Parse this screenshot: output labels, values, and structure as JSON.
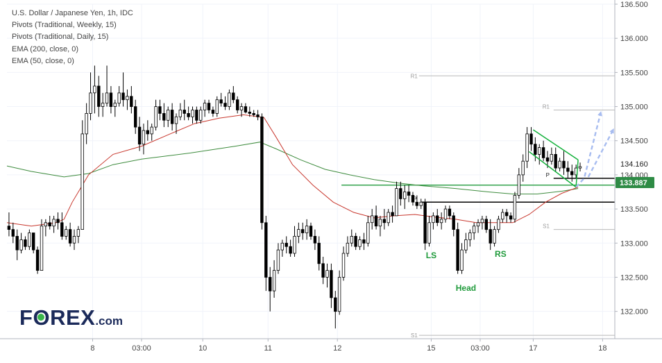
{
  "legend": {
    "line1": "U.S. Dollar / Japanese Yen, 1h, IDC",
    "line2": "Pivots (Traditional, Weekly, 15)",
    "line3": "Pivots (Traditional, Daily, 15)",
    "line4": "EMA (200, close, 0)",
    "line5": "EMA (50, close, 0)"
  },
  "logo": {
    "part1": "F",
    "part2": "REX",
    "part3": ".com"
  },
  "colors": {
    "up": "#ffffff",
    "down": "#000000",
    "wick": "#000000",
    "ema50": "#c8372d",
    "ema200": "#3d8b3d",
    "price_label": "#2e8b45",
    "pattern": "#1e9a3a",
    "flag": "#13b13b",
    "arrow": "#a7bcf0",
    "pivot_weekly": "#b8b8b8",
    "pivot_daily": "#000000"
  },
  "chart_data": {
    "type": "candlestick",
    "symbol": "USD/JPY",
    "timeframe": "1h",
    "yaxis": {
      "range": [
        131.6,
        136.5
      ],
      "ticks": [
        132.0,
        132.5,
        133.0,
        133.5,
        134.0,
        134.5,
        135.0,
        135.5,
        136.0,
        136.5
      ],
      "tick_labels": [
        "132.000",
        "132.500",
        "133.000",
        "133.500",
        "134.000",
        "134.500",
        "135.000",
        "135.500",
        "136.000",
        "136.500"
      ]
    },
    "xaxis": {
      "range": [
        0,
        149
      ],
      "ticks": [
        21,
        33,
        48,
        64,
        81,
        104,
        116,
        129,
        146
      ],
      "tick_labels": [
        "8",
        "03:00",
        "10",
        "11",
        "12",
        "15",
        "03:00",
        "17",
        "18"
      ]
    },
    "current_price": {
      "value": 133.887,
      "label": "133.887"
    },
    "price_tag": {
      "value": 134.16,
      "label": "134.160"
    },
    "weekly_pivots": [
      {
        "label": "R1",
        "value": 135.45,
        "x_start": 101,
        "x_end": 149
      },
      {
        "label": "S1",
        "value": 131.65,
        "x_start": 101,
        "x_end": 149
      }
    ],
    "daily_pivots": [
      {
        "label": "P",
        "value": 133.6,
        "x_start": 101.5,
        "x_end": 149,
        "label_x": 100.5
      },
      {
        "label": "R1",
        "value": 134.95,
        "x_start": 134,
        "x_end": 149,
        "label_x": 133
      },
      {
        "label": "P",
        "value": 133.95,
        "x_start": 134,
        "x_end": 149,
        "label_x": 133
      },
      {
        "label": "S1",
        "value": 133.2,
        "x_start": 134,
        "x_end": 149,
        "label_x": 133
      }
    ],
    "neckline": {
      "value": 133.85,
      "x_start": 82,
      "x_end": 149
    },
    "annotations": [
      {
        "text": "LS",
        "x": 104,
        "value": 132.78
      },
      {
        "text": "Head",
        "x": 112.5,
        "value": 132.3
      },
      {
        "text": "RS",
        "x": 121,
        "value": 132.8
      }
    ],
    "flag_channel": {
      "upper": [
        [
          129,
          134.66
        ],
        [
          140,
          134.22
        ]
      ],
      "lower": [
        [
          128,
          134.34
        ],
        [
          139.5,
          133.82
        ]
      ],
      "apex": [
        139.5,
        133.82
      ]
    },
    "projection_arrows": [
      [
        [
          139.5,
          133.82
        ],
        [
          141.5,
          133.95
        ],
        [
          145.5,
          134.9
        ]
      ],
      [
        [
          142.5,
          133.97
        ],
        [
          148.5,
          134.65
        ]
      ]
    ],
    "ema_50": [
      [
        0,
        133.3
      ],
      [
        6,
        133.25
      ],
      [
        12,
        133.3
      ],
      [
        14,
        133.35
      ],
      [
        16,
        133.6
      ],
      [
        20,
        134.0
      ],
      [
        26,
        134.3
      ],
      [
        33,
        134.42
      ],
      [
        40,
        134.6
      ],
      [
        46,
        134.75
      ],
      [
        52,
        134.83
      ],
      [
        58,
        134.88
      ],
      [
        63,
        134.84
      ],
      [
        66,
        134.55
      ],
      [
        70,
        134.15
      ],
      [
        75,
        133.85
      ],
      [
        80,
        133.6
      ],
      [
        85,
        133.45
      ],
      [
        90,
        133.37
      ],
      [
        95,
        133.4
      ],
      [
        100,
        133.42
      ],
      [
        105,
        133.38
      ],
      [
        110,
        133.35
      ],
      [
        115,
        133.3
      ],
      [
        120,
        133.3
      ],
      [
        124,
        133.3
      ],
      [
        128,
        133.42
      ],
      [
        132,
        133.6
      ],
      [
        136,
        133.73
      ],
      [
        140,
        133.82
      ]
    ],
    "ema_200": [
      [
        0,
        134.13
      ],
      [
        6,
        134.05
      ],
      [
        14,
        133.97
      ],
      [
        20,
        134.02
      ],
      [
        26,
        134.15
      ],
      [
        33,
        134.23
      ],
      [
        45,
        134.32
      ],
      [
        56,
        134.42
      ],
      [
        62,
        134.48
      ],
      [
        66,
        134.38
      ],
      [
        72,
        134.22
      ],
      [
        78,
        134.08
      ],
      [
        84,
        134.0
      ],
      [
        90,
        133.93
      ],
      [
        96,
        133.88
      ],
      [
        102,
        133.84
      ],
      [
        110,
        133.8
      ],
      [
        118,
        133.75
      ],
      [
        124,
        133.72
      ],
      [
        130,
        133.72
      ],
      [
        136,
        133.76
      ],
      [
        140,
        133.8
      ]
    ],
    "candles": [
      [
        133.25,
        133.45,
        133.1,
        133.2
      ],
      [
        133.2,
        133.3,
        133.0,
        133.1
      ],
      [
        133.1,
        133.2,
        132.75,
        132.9
      ],
      [
        132.9,
        133.15,
        132.85,
        133.05
      ],
      [
        133.05,
        133.1,
        132.9,
        132.95
      ],
      [
        132.95,
        133.2,
        132.9,
        133.15
      ],
      [
        133.15,
        133.15,
        132.85,
        132.9
      ],
      [
        132.9,
        132.95,
        132.55,
        132.6
      ],
      [
        132.6,
        133.35,
        132.6,
        133.25
      ],
      [
        133.25,
        133.35,
        133.1,
        133.3
      ],
      [
        133.3,
        133.4,
        133.2,
        133.25
      ],
      [
        133.25,
        133.4,
        133.15,
        133.35
      ],
      [
        133.35,
        133.45,
        133.2,
        133.3
      ],
      [
        133.3,
        133.45,
        133.05,
        133.1
      ],
      [
        133.1,
        133.25,
        133.05,
        133.2
      ],
      [
        133.2,
        133.3,
        132.95,
        133.0
      ],
      [
        133.0,
        133.2,
        132.9,
        133.1
      ],
      [
        133.1,
        133.25,
        133.0,
        133.2
      ],
      [
        133.2,
        134.8,
        133.2,
        134.6
      ],
      [
        134.6,
        135.05,
        134.45,
        134.9
      ],
      [
        134.9,
        135.5,
        134.8,
        135.2
      ],
      [
        135.2,
        135.6,
        134.9,
        135.3
      ],
      [
        135.3,
        135.45,
        134.85,
        135.0
      ],
      [
        135.0,
        135.2,
        134.85,
        135.05
      ],
      [
        135.05,
        135.6,
        135.0,
        135.2
      ],
      [
        135.2,
        135.3,
        134.9,
        135.0
      ],
      [
        135.0,
        135.1,
        134.85,
        135.05
      ],
      [
        135.05,
        135.3,
        135.0,
        135.2
      ],
      [
        135.2,
        135.5,
        135.0,
        135.1
      ],
      [
        135.1,
        135.25,
        134.95,
        135.15
      ],
      [
        135.15,
        135.3,
        134.9,
        135.0
      ],
      [
        135.0,
        135.1,
        134.6,
        134.7
      ],
      [
        134.7,
        134.85,
        134.35,
        134.45
      ],
      [
        134.45,
        134.75,
        134.3,
        134.65
      ],
      [
        134.65,
        134.8,
        134.5,
        134.6
      ],
      [
        134.6,
        134.75,
        134.5,
        134.7
      ],
      [
        134.7,
        135.1,
        134.65,
        135.0
      ],
      [
        135.0,
        135.1,
        134.8,
        134.9
      ],
      [
        134.9,
        135.05,
        134.7,
        134.8
      ],
      [
        134.8,
        135.0,
        134.7,
        134.95
      ],
      [
        134.95,
        135.05,
        134.65,
        134.75
      ],
      [
        134.75,
        134.9,
        134.6,
        134.85
      ],
      [
        134.85,
        135.05,
        134.8,
        134.95
      ],
      [
        134.95,
        135.1,
        134.8,
        134.9
      ],
      [
        134.9,
        135.0,
        134.8,
        134.85
      ],
      [
        134.85,
        135.0,
        134.75,
        134.95
      ],
      [
        134.95,
        135.0,
        134.75,
        134.8
      ],
      [
        134.8,
        135.0,
        134.75,
        134.95
      ],
      [
        134.95,
        135.1,
        134.85,
        135.05
      ],
      [
        135.05,
        135.1,
        134.9,
        134.95
      ],
      [
        134.95,
        135.0,
        134.85,
        134.9
      ],
      [
        134.9,
        135.15,
        134.85,
        135.1
      ],
      [
        135.1,
        135.2,
        135.0,
        135.05
      ],
      [
        135.05,
        135.15,
        134.95,
        135.0
      ],
      [
        135.0,
        135.25,
        134.95,
        135.2
      ],
      [
        135.2,
        135.3,
        135.05,
        135.1
      ],
      [
        135.1,
        135.15,
        134.9,
        134.95
      ],
      [
        134.95,
        135.05,
        134.85,
        135.0
      ],
      [
        135.0,
        135.05,
        134.9,
        134.92
      ],
      [
        134.92,
        135.0,
        134.85,
        134.9
      ],
      [
        134.9,
        134.95,
        134.85,
        134.88
      ],
      [
        134.88,
        134.95,
        134.8,
        134.85
      ],
      [
        134.85,
        134.9,
        133.2,
        133.3
      ],
      [
        133.3,
        133.4,
        132.3,
        132.5
      ],
      [
        132.5,
        132.65,
        132.0,
        132.3
      ],
      [
        132.3,
        132.75,
        132.2,
        132.6
      ],
      [
        132.6,
        133.0,
        132.55,
        132.9
      ],
      [
        132.9,
        133.05,
        132.8,
        133.0
      ],
      [
        133.0,
        133.1,
        132.85,
        132.95
      ],
      [
        132.95,
        133.05,
        132.8,
        132.85
      ],
      [
        132.85,
        133.25,
        132.8,
        133.1
      ],
      [
        133.1,
        133.3,
        133.0,
        133.2
      ],
      [
        133.2,
        133.3,
        133.05,
        133.15
      ],
      [
        133.15,
        133.35,
        133.05,
        133.25
      ],
      [
        133.25,
        133.3,
        133.05,
        133.1
      ],
      [
        133.1,
        133.2,
        132.9,
        133.0
      ],
      [
        133.0,
        133.1,
        132.6,
        132.7
      ],
      [
        132.7,
        132.8,
        132.4,
        132.5
      ],
      [
        132.5,
        132.7,
        132.35,
        132.6
      ],
      [
        132.6,
        132.7,
        132.05,
        132.2
      ],
      [
        132.2,
        132.3,
        131.75,
        132.0
      ],
      [
        132.0,
        132.6,
        131.95,
        132.5
      ],
      [
        132.5,
        132.95,
        132.45,
        132.85
      ],
      [
        132.85,
        133.1,
        132.8,
        133.0
      ],
      [
        133.0,
        133.2,
        132.95,
        133.1
      ],
      [
        133.1,
        133.15,
        132.9,
        132.95
      ],
      [
        132.95,
        133.1,
        132.9,
        133.05
      ],
      [
        133.05,
        133.15,
        132.9,
        133.0
      ],
      [
        133.0,
        133.4,
        132.95,
        133.3
      ],
      [
        133.3,
        133.5,
        133.2,
        133.4
      ],
      [
        133.4,
        133.55,
        133.2,
        133.25
      ],
      [
        133.25,
        133.4,
        133.1,
        133.35
      ],
      [
        133.35,
        133.5,
        133.2,
        133.3
      ],
      [
        133.3,
        133.5,
        133.25,
        133.45
      ],
      [
        133.45,
        133.55,
        133.3,
        133.4
      ],
      [
        133.4,
        133.9,
        133.4,
        133.8
      ],
      [
        133.8,
        133.9,
        133.55,
        133.65
      ],
      [
        133.65,
        133.85,
        133.5,
        133.75
      ],
      [
        133.75,
        133.85,
        133.6,
        133.7
      ],
      [
        133.7,
        133.75,
        133.55,
        133.6
      ],
      [
        133.6,
        133.7,
        133.5,
        133.55
      ],
      [
        133.55,
        133.65,
        133.5,
        133.6
      ],
      [
        133.6,
        133.65,
        132.9,
        133.0
      ],
      [
        133.0,
        133.4,
        132.95,
        133.3
      ],
      [
        133.3,
        133.45,
        133.2,
        133.4
      ],
      [
        133.4,
        133.5,
        133.25,
        133.3
      ],
      [
        133.3,
        133.45,
        133.2,
        133.35
      ],
      [
        133.35,
        133.55,
        133.3,
        133.5
      ],
      [
        133.5,
        133.55,
        133.35,
        133.4
      ],
      [
        133.4,
        133.45,
        133.1,
        133.2
      ],
      [
        133.2,
        133.3,
        132.55,
        132.6
      ],
      [
        132.6,
        133.0,
        132.55,
        132.9
      ],
      [
        132.9,
        133.15,
        132.85,
        133.05
      ],
      [
        133.05,
        133.2,
        132.95,
        133.15
      ],
      [
        133.15,
        133.3,
        133.05,
        133.25
      ],
      [
        133.25,
        133.35,
        133.15,
        133.3
      ],
      [
        133.3,
        133.4,
        133.2,
        133.35
      ],
      [
        133.35,
        133.4,
        133.15,
        133.2
      ],
      [
        133.2,
        133.35,
        132.9,
        133.0
      ],
      [
        133.0,
        133.25,
        132.95,
        133.2
      ],
      [
        133.2,
        133.4,
        133.15,
        133.35
      ],
      [
        133.35,
        133.5,
        133.3,
        133.45
      ],
      [
        133.45,
        133.5,
        133.3,
        133.4
      ],
      [
        133.4,
        133.45,
        133.3,
        133.35
      ],
      [
        133.35,
        133.75,
        133.3,
        133.7
      ],
      [
        133.7,
        134.1,
        133.65,
        134.0
      ],
      [
        134.0,
        134.3,
        133.9,
        134.2
      ],
      [
        134.2,
        134.7,
        134.1,
        134.6
      ],
      [
        134.6,
        134.7,
        134.35,
        134.45
      ],
      [
        134.45,
        134.55,
        134.2,
        134.3
      ],
      [
        134.3,
        134.45,
        134.15,
        134.4
      ],
      [
        134.4,
        134.5,
        134.2,
        134.25
      ],
      [
        134.25,
        134.35,
        134.1,
        134.2
      ],
      [
        134.2,
        134.4,
        134.15,
        134.3
      ],
      [
        134.3,
        134.4,
        134.05,
        134.1
      ],
      [
        134.1,
        134.25,
        134.05,
        134.2
      ],
      [
        134.2,
        134.35,
        134.0,
        134.1
      ],
      [
        134.1,
        134.2,
        133.95,
        134.05
      ],
      [
        134.05,
        134.15,
        133.9,
        134.0
      ],
      [
        134.0,
        134.15,
        133.95,
        134.1
      ],
      [
        134.1,
        134.18,
        134.05,
        134.12
      ]
    ]
  }
}
